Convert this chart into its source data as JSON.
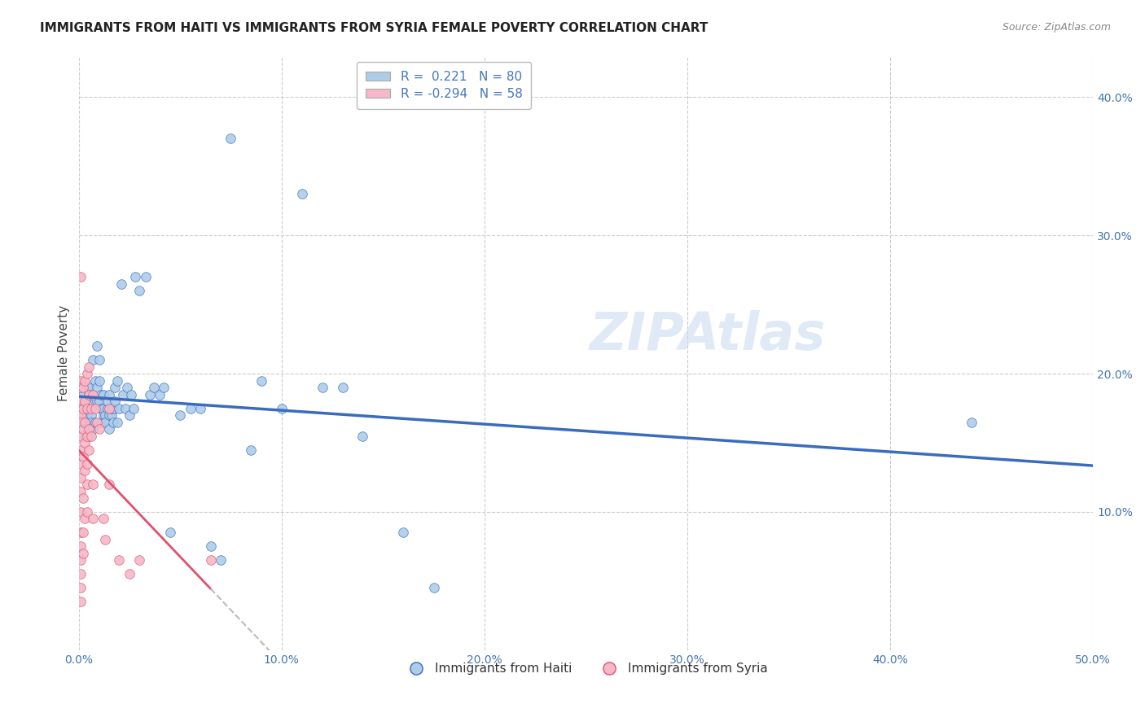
{
  "title": "IMMIGRANTS FROM HAITI VS IMMIGRANTS FROM SYRIA FEMALE POVERTY CORRELATION CHART",
  "source": "Source: ZipAtlas.com",
  "ylabel": "Female Poverty",
  "xlim": [
    0.0,
    0.5
  ],
  "ylim": [
    0.0,
    0.43
  ],
  "haiti_R": 0.221,
  "haiti_N": 80,
  "syria_R": -0.294,
  "syria_N": 58,
  "haiti_color": "#aecce8",
  "syria_color": "#f4b8c8",
  "haiti_line_color": "#3a6bbf",
  "syria_line_color": "#e05070",
  "watermark": "ZIPAtlas",
  "legend_haiti": "Immigrants from Haiti",
  "legend_syria": "Immigrants from Syria",
  "haiti_scatter": [
    [
      0.001,
      0.175
    ],
    [
      0.002,
      0.185
    ],
    [
      0.002,
      0.17
    ],
    [
      0.003,
      0.165
    ],
    [
      0.003,
      0.155
    ],
    [
      0.003,
      0.18
    ],
    [
      0.004,
      0.19
    ],
    [
      0.004,
      0.17
    ],
    [
      0.004,
      0.16
    ],
    [
      0.005,
      0.155
    ],
    [
      0.005,
      0.19
    ],
    [
      0.005,
      0.185
    ],
    [
      0.005,
      0.175
    ],
    [
      0.006,
      0.17
    ],
    [
      0.006,
      0.165
    ],
    [
      0.007,
      0.16
    ],
    [
      0.007,
      0.185
    ],
    [
      0.007,
      0.21
    ],
    [
      0.008,
      0.18
    ],
    [
      0.008,
      0.165
    ],
    [
      0.008,
      0.195
    ],
    [
      0.009,
      0.22
    ],
    [
      0.009,
      0.18
    ],
    [
      0.009,
      0.19
    ],
    [
      0.01,
      0.195
    ],
    [
      0.01,
      0.18
    ],
    [
      0.01,
      0.21
    ],
    [
      0.011,
      0.185
    ],
    [
      0.011,
      0.175
    ],
    [
      0.011,
      0.165
    ],
    [
      0.012,
      0.17
    ],
    [
      0.012,
      0.175
    ],
    [
      0.012,
      0.185
    ],
    [
      0.013,
      0.17
    ],
    [
      0.013,
      0.165
    ],
    [
      0.014,
      0.175
    ],
    [
      0.014,
      0.18
    ],
    [
      0.015,
      0.17
    ],
    [
      0.015,
      0.185
    ],
    [
      0.015,
      0.16
    ],
    [
      0.016,
      0.17
    ],
    [
      0.016,
      0.175
    ],
    [
      0.017,
      0.165
    ],
    [
      0.017,
      0.175
    ],
    [
      0.018,
      0.18
    ],
    [
      0.018,
      0.19
    ],
    [
      0.019,
      0.165
    ],
    [
      0.019,
      0.195
    ],
    [
      0.02,
      0.175
    ],
    [
      0.021,
      0.265
    ],
    [
      0.022,
      0.185
    ],
    [
      0.023,
      0.175
    ],
    [
      0.024,
      0.19
    ],
    [
      0.025,
      0.17
    ],
    [
      0.026,
      0.185
    ],
    [
      0.027,
      0.175
    ],
    [
      0.028,
      0.27
    ],
    [
      0.03,
      0.26
    ],
    [
      0.033,
      0.27
    ],
    [
      0.035,
      0.185
    ],
    [
      0.037,
      0.19
    ],
    [
      0.04,
      0.185
    ],
    [
      0.042,
      0.19
    ],
    [
      0.045,
      0.085
    ],
    [
      0.05,
      0.17
    ],
    [
      0.055,
      0.175
    ],
    [
      0.06,
      0.175
    ],
    [
      0.065,
      0.075
    ],
    [
      0.07,
      0.065
    ],
    [
      0.075,
      0.37
    ],
    [
      0.085,
      0.145
    ],
    [
      0.09,
      0.195
    ],
    [
      0.1,
      0.175
    ],
    [
      0.11,
      0.33
    ],
    [
      0.12,
      0.19
    ],
    [
      0.13,
      0.19
    ],
    [
      0.14,
      0.155
    ],
    [
      0.16,
      0.085
    ],
    [
      0.175,
      0.045
    ],
    [
      0.44,
      0.165
    ]
  ],
  "syria_scatter": [
    [
      0.001,
      0.27
    ],
    [
      0.001,
      0.195
    ],
    [
      0.001,
      0.19
    ],
    [
      0.001,
      0.18
    ],
    [
      0.001,
      0.175
    ],
    [
      0.001,
      0.17
    ],
    [
      0.001,
      0.165
    ],
    [
      0.001,
      0.155
    ],
    [
      0.001,
      0.145
    ],
    [
      0.001,
      0.135
    ],
    [
      0.001,
      0.125
    ],
    [
      0.001,
      0.115
    ],
    [
      0.001,
      0.1
    ],
    [
      0.001,
      0.085
    ],
    [
      0.001,
      0.075
    ],
    [
      0.001,
      0.065
    ],
    [
      0.001,
      0.055
    ],
    [
      0.001,
      0.045
    ],
    [
      0.001,
      0.035
    ],
    [
      0.002,
      0.19
    ],
    [
      0.002,
      0.175
    ],
    [
      0.002,
      0.16
    ],
    [
      0.002,
      0.14
    ],
    [
      0.002,
      0.11
    ],
    [
      0.002,
      0.085
    ],
    [
      0.002,
      0.07
    ],
    [
      0.003,
      0.195
    ],
    [
      0.003,
      0.18
    ],
    [
      0.003,
      0.165
    ],
    [
      0.003,
      0.15
    ],
    [
      0.003,
      0.13
    ],
    [
      0.003,
      0.095
    ],
    [
      0.004,
      0.2
    ],
    [
      0.004,
      0.175
    ],
    [
      0.004,
      0.155
    ],
    [
      0.004,
      0.135
    ],
    [
      0.004,
      0.12
    ],
    [
      0.004,
      0.1
    ],
    [
      0.005,
      0.205
    ],
    [
      0.005,
      0.185
    ],
    [
      0.005,
      0.16
    ],
    [
      0.005,
      0.145
    ],
    [
      0.006,
      0.175
    ],
    [
      0.006,
      0.155
    ],
    [
      0.007,
      0.185
    ],
    [
      0.007,
      0.12
    ],
    [
      0.007,
      0.095
    ],
    [
      0.008,
      0.175
    ],
    [
      0.009,
      0.165
    ],
    [
      0.01,
      0.16
    ],
    [
      0.012,
      0.095
    ],
    [
      0.013,
      0.08
    ],
    [
      0.015,
      0.175
    ],
    [
      0.015,
      0.12
    ],
    [
      0.02,
      0.065
    ],
    [
      0.025,
      0.055
    ],
    [
      0.03,
      0.065
    ],
    [
      0.065,
      0.065
    ]
  ]
}
